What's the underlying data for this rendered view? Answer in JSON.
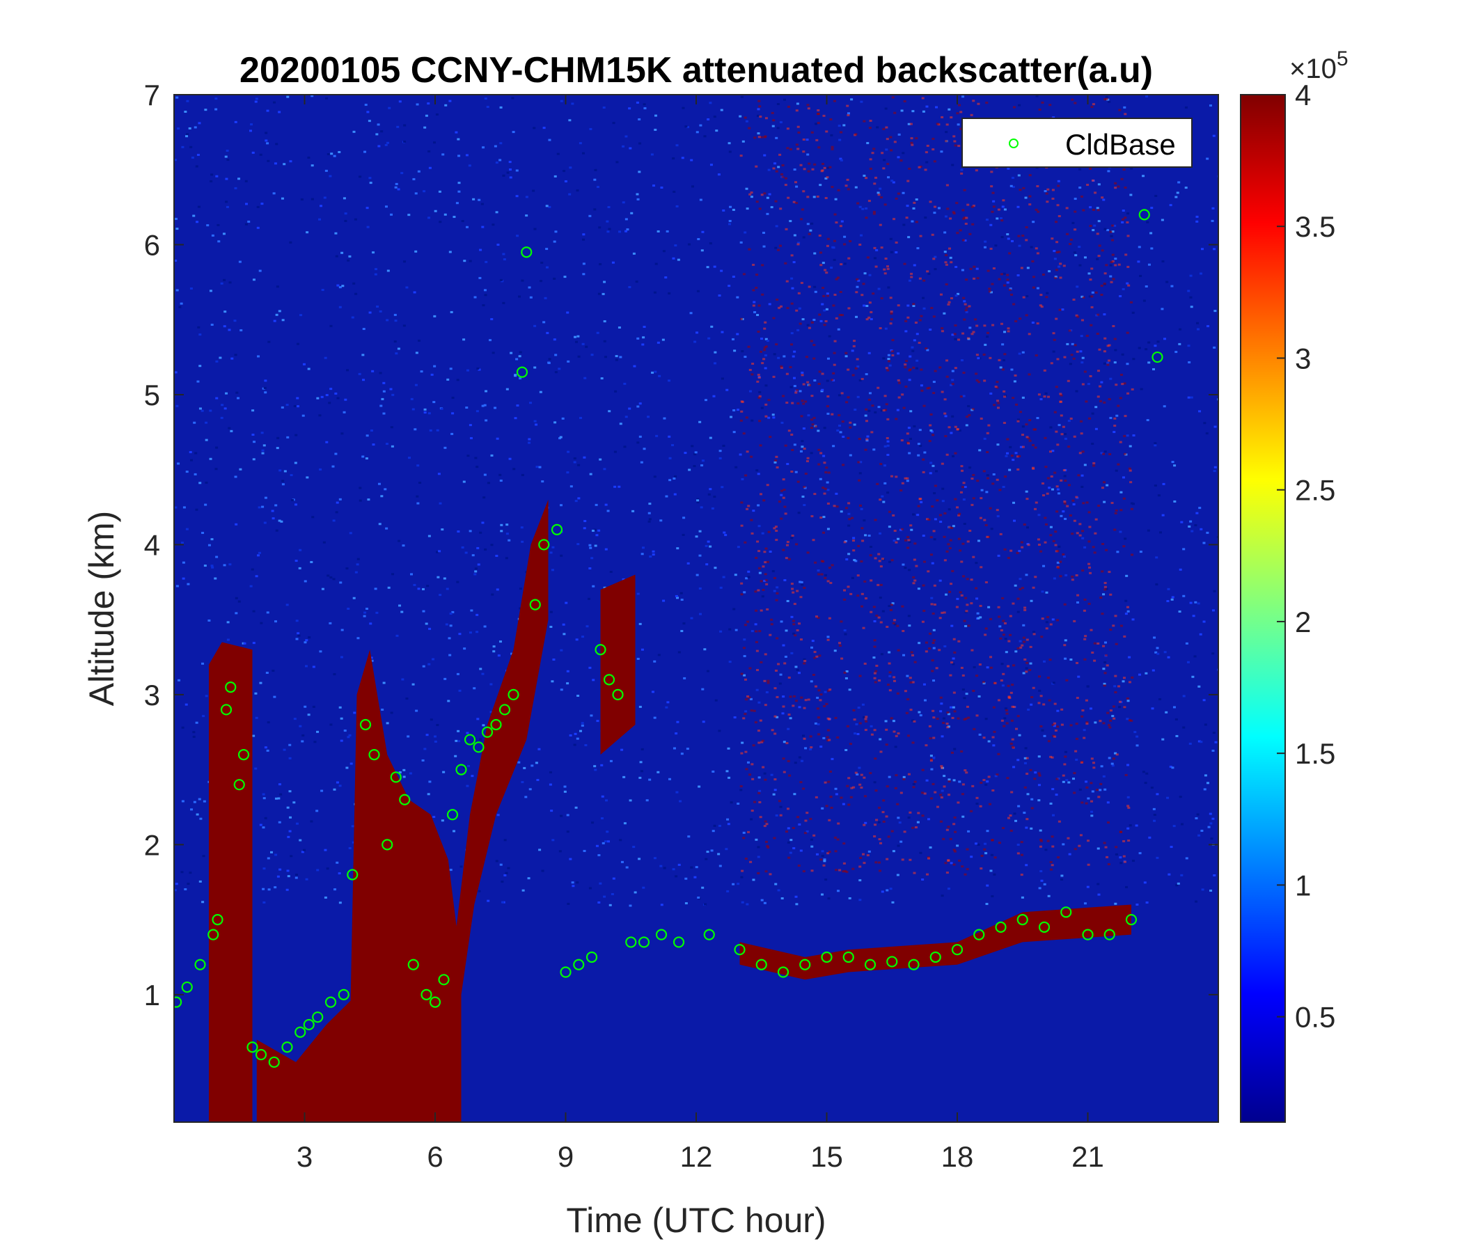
{
  "chart_data": {
    "type": "heatmap",
    "title": "20200105 CCNY-CHM15K attenuated backscatter(a.u)",
    "xlabel": "Time (UTC hour)",
    "ylabel": "Altitude (km)",
    "xlim": [
      0,
      24
    ],
    "ylim": [
      0.15,
      7
    ],
    "xticks": [
      3,
      6,
      9,
      12,
      15,
      18,
      21
    ],
    "yticks": [
      1,
      2,
      3,
      4,
      5,
      6,
      7
    ],
    "colorbar": {
      "colormap": "jet",
      "range": [
        10000,
        400000
      ],
      "ticks": [
        0.5,
        1,
        1.5,
        2,
        2.5,
        3,
        3.5,
        4
      ],
      "multiplier_base": "×10",
      "multiplier_exponent": "5"
    },
    "legend": {
      "location": "top-right",
      "entries": [
        "CldBase"
      ]
    },
    "series": [
      {
        "name": "CldBase",
        "marker": "circle",
        "color": "#00ff00",
        "x": [
          0.05,
          0.3,
          0.6,
          0.9,
          1.0,
          1.2,
          1.3,
          1.5,
          1.6,
          1.8,
          2.0,
          2.3,
          2.6,
          2.9,
          3.1,
          3.3,
          3.6,
          3.9,
          4.1,
          4.4,
          4.6,
          4.9,
          5.1,
          5.3,
          5.5,
          5.8,
          6.0,
          6.2,
          6.4,
          6.6,
          6.8,
          7.0,
          7.2,
          7.4,
          7.6,
          7.8,
          8.0,
          8.1,
          8.3,
          8.5,
          8.8,
          9.0,
          9.3,
          9.6,
          9.8,
          10.0,
          10.2,
          10.5,
          10.8,
          11.2,
          11.6,
          12.3,
          13.0,
          13.5,
          14.0,
          14.5,
          15.0,
          15.5,
          16.0,
          16.5,
          17.0,
          17.5,
          18.0,
          18.5,
          19.0,
          19.5,
          20.0,
          20.5,
          21.0,
          21.5,
          22.0,
          22.3,
          22.6
        ],
        "y": [
          0.95,
          1.05,
          1.2,
          1.4,
          1.5,
          2.9,
          3.05,
          2.4,
          2.6,
          0.65,
          0.6,
          0.55,
          0.65,
          0.75,
          0.8,
          0.85,
          0.95,
          1.0,
          1.8,
          2.8,
          2.6,
          2.0,
          2.45,
          2.3,
          1.2,
          1.0,
          0.95,
          1.1,
          2.2,
          2.5,
          2.7,
          2.65,
          2.75,
          2.8,
          2.9,
          3.0,
          5.15,
          5.95,
          3.6,
          4.0,
          4.1,
          1.15,
          1.2,
          1.25,
          3.3,
          3.1,
          3.0,
          1.35,
          1.35,
          1.4,
          1.35,
          1.4,
          1.3,
          1.2,
          1.15,
          1.2,
          1.25,
          1.25,
          1.2,
          1.22,
          1.2,
          1.25,
          1.3,
          1.4,
          1.45,
          1.5,
          1.45,
          1.55,
          1.4,
          1.4,
          1.5,
          6.2,
          5.25
        ]
      }
    ]
  }
}
